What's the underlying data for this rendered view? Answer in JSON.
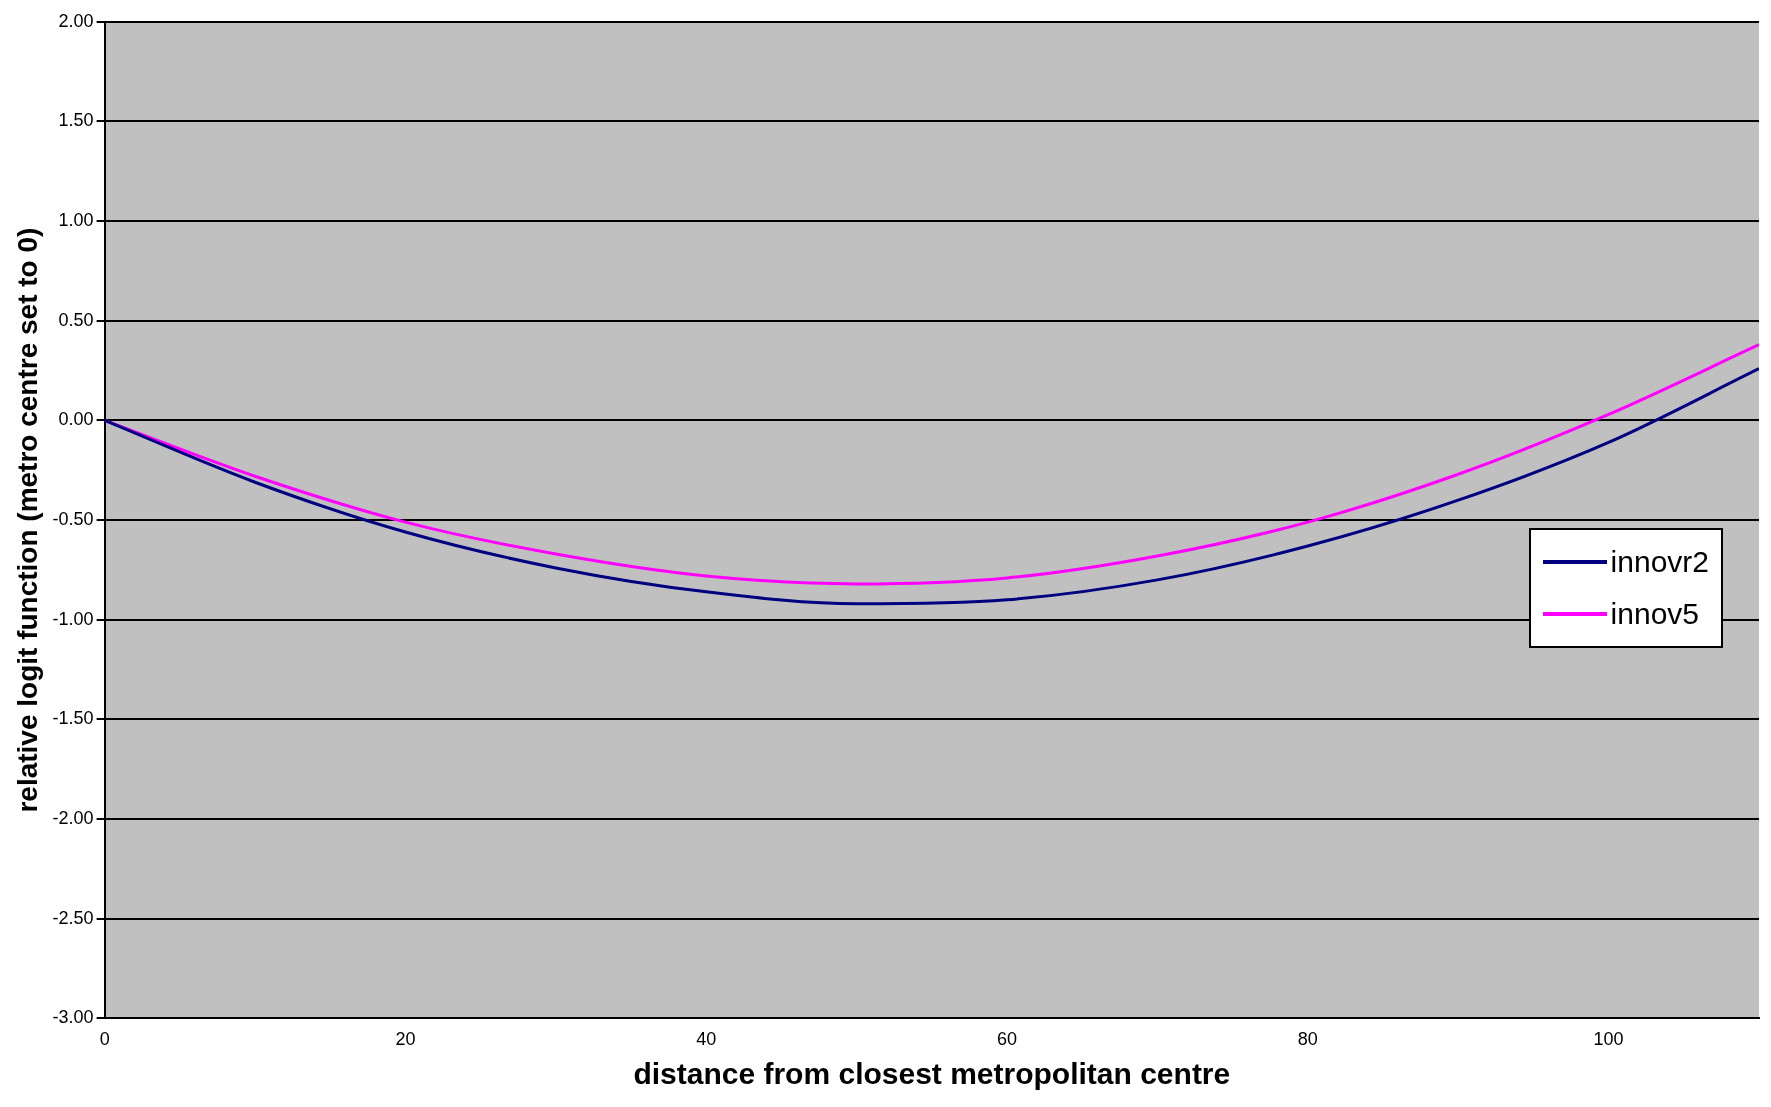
{
  "chart_data": {
    "type": "line",
    "xlabel": "distance from closest metropolitan centre",
    "ylabel": "relative logit function (metro centre set to 0)",
    "x": [
      0,
      10,
      20,
      30,
      40,
      50,
      60,
      70,
      80,
      90,
      100,
      110
    ],
    "series": [
      {
        "name": "innovr2",
        "color": "#000080",
        "values": [
          0,
          -0.31,
          -0.56,
          -0.74,
          -0.86,
          -0.92,
          -0.9,
          -0.8,
          -0.63,
          -0.4,
          -0.11,
          0.26
        ]
      },
      {
        "name": "innov5",
        "color": "#ff00ff",
        "values": [
          0,
          -0.28,
          -0.51,
          -0.67,
          -0.78,
          -0.82,
          -0.79,
          -0.68,
          -0.51,
          -0.27,
          0.03,
          0.38
        ]
      }
    ],
    "xlim": [
      0,
      110
    ],
    "xticks": [
      0,
      20,
      40,
      60,
      80,
      100
    ],
    "ylim": [
      -3,
      2
    ],
    "yticks": [
      {
        "value": -3,
        "label": "-3.00"
      },
      {
        "value": -2.5,
        "label": "-2.50"
      },
      {
        "value": -2,
        "label": "-2.00"
      },
      {
        "value": -1.5,
        "label": "-1.50"
      },
      {
        "value": -1,
        "label": "-1.00"
      },
      {
        "value": -0.5,
        "label": "-0.50"
      },
      {
        "value": 0,
        "label": "0.00"
      },
      {
        "value": 0.5,
        "label": "0.50"
      },
      {
        "value": 1,
        "label": "1.00"
      },
      {
        "value": 1.5,
        "label": "1.50"
      },
      {
        "value": 2,
        "label": "2.00"
      }
    ],
    "grid": "y",
    "legend": "right",
    "marker": "none",
    "line_style": "solid"
  }
}
